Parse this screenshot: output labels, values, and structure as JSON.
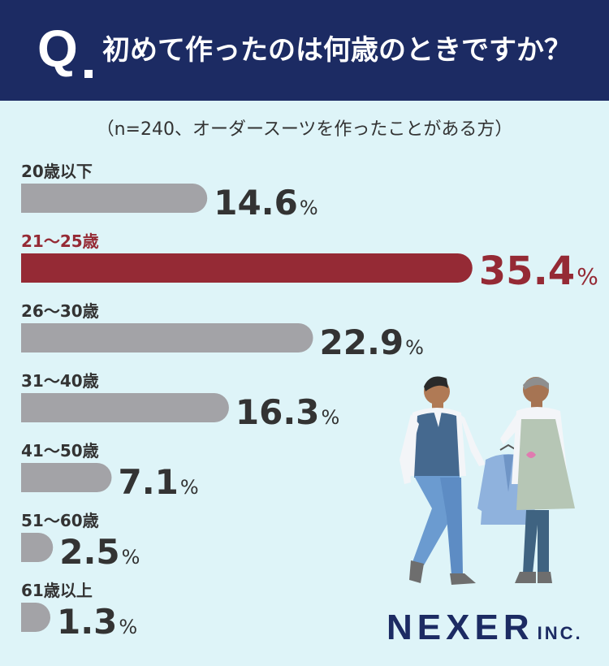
{
  "header": {
    "q_label": "Q",
    "question": "初めて作ったのは何歳のときですか？"
  },
  "subtitle": "（n=240、オーダースーツを作ったことがある方）",
  "colors": {
    "header_bg": "#1c2b63",
    "background": "#def4f8",
    "bar_default": "#a3a3a7",
    "bar_highlight": "#952a35",
    "text_default": "#333333"
  },
  "chart_data": {
    "type": "bar",
    "orientation": "horizontal",
    "unit": "%",
    "categories": [
      "20歳以下",
      "21〜25歳",
      "26〜30歳",
      "31〜40歳",
      "41〜50歳",
      "51〜60歳",
      "61歳以上"
    ],
    "values": [
      14.6,
      35.4,
      22.9,
      16.3,
      7.1,
      2.5,
      1.3
    ],
    "highlight_index": 1,
    "grid": false,
    "legend": "none"
  },
  "logo": {
    "name": "NEXER",
    "suffix": "INC."
  }
}
